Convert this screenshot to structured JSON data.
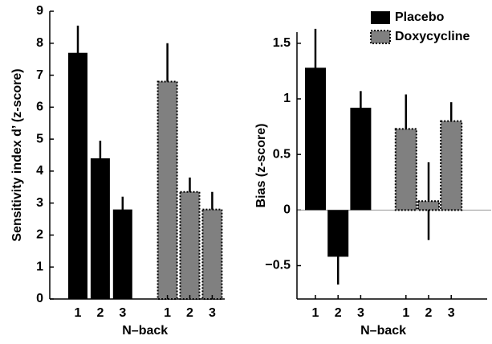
{
  "chart_data": [
    {
      "type": "bar",
      "ylabel": "Sensitivity index d’ (z-score)",
      "xlabel": "N–back",
      "categories": [
        "1",
        "2",
        "3"
      ],
      "series": [
        {
          "color": "#000000",
          "values": [
            7.7,
            4.4,
            2.8
          ],
          "errors": [
            0.85,
            0.55,
            0.4
          ]
        },
        {
          "color": "#808080",
          "values": [
            6.8,
            3.35,
            2.8
          ],
          "errors": [
            1.2,
            0.45,
            0.55
          ]
        }
      ],
      "ylim": [
        0,
        9
      ],
      "yticks": [
        0,
        1,
        2,
        3,
        4,
        5,
        6,
        7,
        8,
        9
      ]
    },
    {
      "type": "bar",
      "ylabel": "Bias (z-score)",
      "xlabel": "N–back",
      "categories": [
        "1",
        "2",
        "3"
      ],
      "series": [
        {
          "name": "Placebo",
          "color": "#000000",
          "values": [
            1.28,
            -0.42,
            0.92
          ],
          "errors": [
            0.35,
            0.25,
            0.15
          ]
        },
        {
          "name": "Doxycycline",
          "color": "#808080",
          "values": [
            0.73,
            0.08,
            0.8
          ],
          "errors": [
            0.31,
            0.35,
            0.17
          ]
        }
      ],
      "ylim": [
        -0.8,
        1.6
      ],
      "yticks": [
        {
          "value": -0.5,
          "label": "−0.5"
        },
        0,
        0.5,
        1,
        1.5
      ],
      "legend": "upper right"
    }
  ]
}
